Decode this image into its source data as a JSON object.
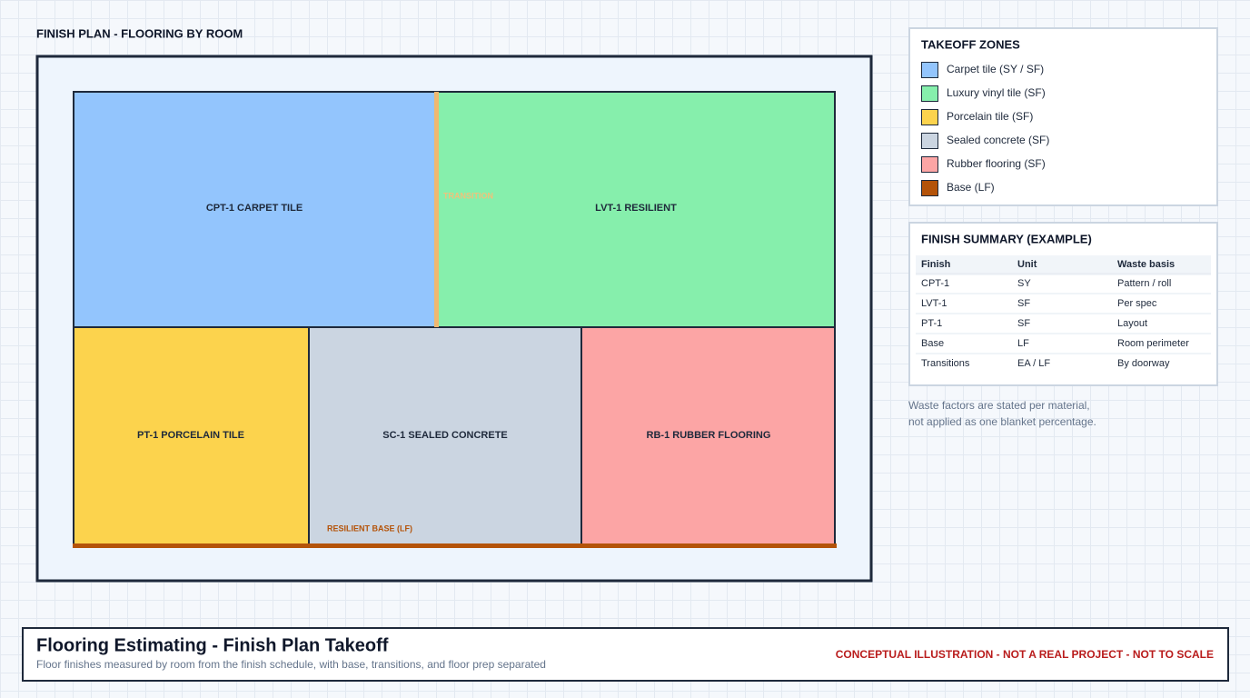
{
  "plan": {
    "title": "FINISH PLAN - FLOORING BY ROOM",
    "rooms": [
      "CPT-1 CARPET TILE",
      "LVT-1 RESILIENT",
      "PT-1 PORCELAIN TILE",
      "SC-1 SEALED CONCRETE",
      "RB-1 RUBBER FLOORING"
    ],
    "transition_label": "TRANSITION",
    "base_label": "RESILIENT BASE (LF)"
  },
  "legend": {
    "title": "TAKEOFF ZONES",
    "items": [
      "Carpet tile (SY / SF)",
      "Luxury vinyl tile (SF)",
      "Porcelain tile (SF)",
      "Sealed concrete (SF)",
      "Rubber flooring (SF)",
      "Base (LF)"
    ]
  },
  "summary": {
    "title": "FINISH SUMMARY (EXAMPLE)",
    "columns": [
      "Finish",
      "Unit",
      "Waste basis"
    ],
    "rows": [
      [
        "CPT-1",
        "SY",
        "Pattern / roll"
      ],
      [
        "LVT-1",
        "SF",
        "Per spec"
      ],
      [
        "PT-1",
        "SF",
        "Layout"
      ],
      [
        "Base",
        "LF",
        "Room perimeter"
      ],
      [
        "Transitions",
        "EA / LF",
        "By doorway"
      ]
    ]
  },
  "note": [
    "Waste factors are stated per material,",
    "not applied as one blanket percentage."
  ],
  "footer": {
    "title": "Flooring Estimating - Finish Plan Takeoff",
    "subtitle": "Floor finishes measured by room from the finish schedule, with base, transitions, and floor prep separated",
    "disclaimer": "CONCEPTUAL ILLUSTRATION - NOT A REAL PROJECT - NOT TO SCALE"
  }
}
